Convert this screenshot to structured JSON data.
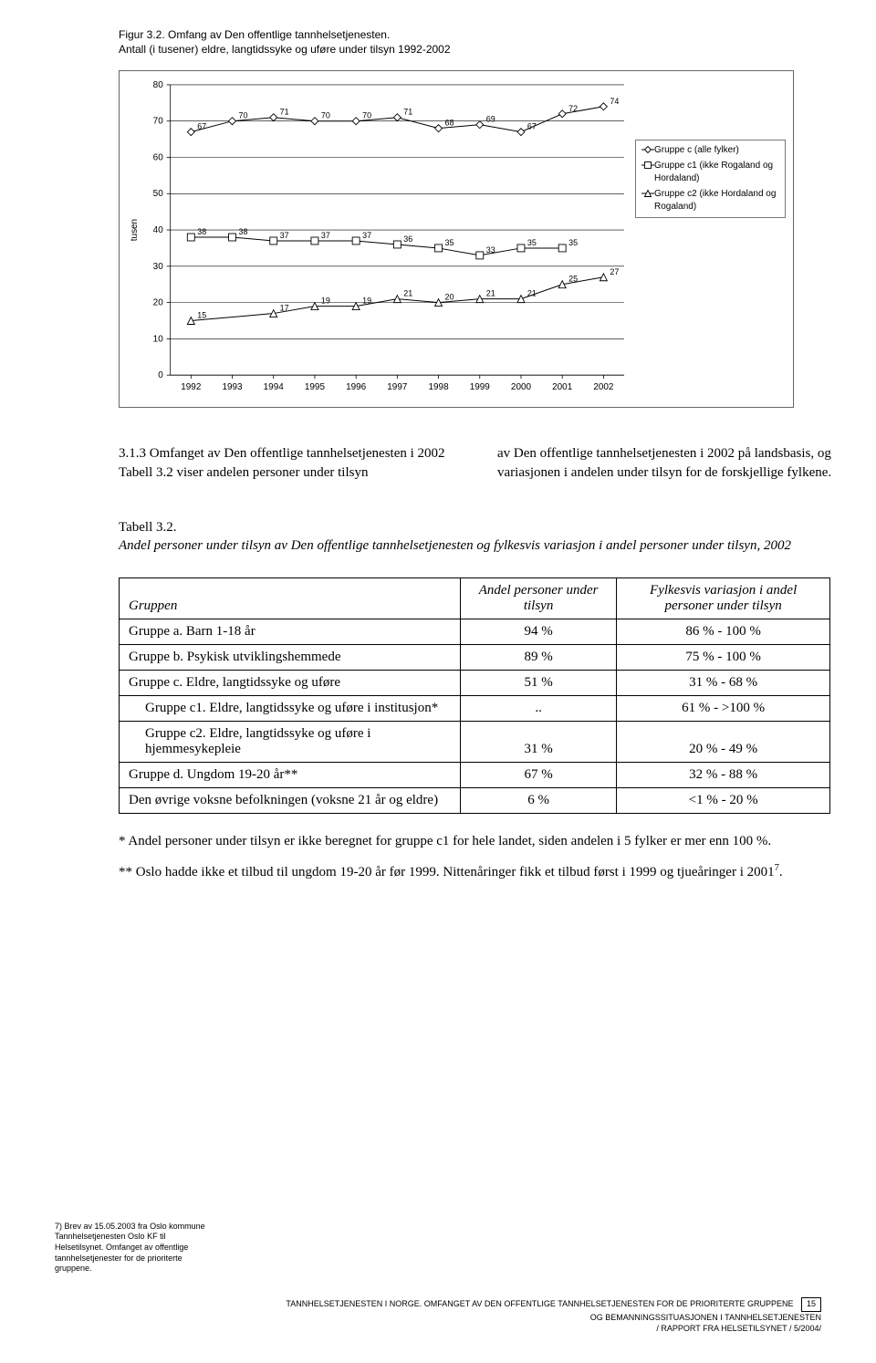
{
  "figure": {
    "title_line1": "Figur 3.2. Omfang av Den offentlige tannhelsetjenesten.",
    "title_line2": "Antall (i tusener) eldre, langtidssyke og uføre under tilsyn 1992-2002",
    "y_label": "tusen",
    "ylim": [
      0,
      80
    ],
    "ytick_step": 10,
    "x_categories": [
      "1992",
      "1993",
      "1994",
      "1995",
      "1996",
      "1997",
      "1998",
      "1999",
      "2000",
      "2001",
      "2002"
    ],
    "series": [
      {
        "name": "Gruppe c (alle fylker)",
        "marker": "diamond",
        "color": "#000000",
        "values": [
          67,
          70,
          71,
          70,
          70,
          71,
          68,
          69,
          67,
          72,
          74
        ]
      },
      {
        "name": "Gruppe c1 (ikke Rogaland og Hordaland)",
        "marker": "square",
        "color": "#000000",
        "values": [
          38,
          38,
          37,
          37,
          37,
          36,
          35,
          33,
          35,
          35,
          null
        ],
        "wraplabel": [
          "Gruppe c1 (ikke Rogaland og",
          "Hordaland)"
        ]
      },
      {
        "name": "Gruppe c2 (ikke Hordaland og Rogaland)",
        "marker": "triangle",
        "color": "#000000",
        "values": [
          15,
          null,
          17,
          19,
          19,
          21,
          20,
          21,
          21,
          25,
          27
        ],
        "wraplabel": [
          "Gruppe c2 (ikke Hordaland og",
          "Rogaland)"
        ]
      }
    ],
    "line_color": "#000000",
    "grid_color": "#000000",
    "background": "#ffffff",
    "label_fontsize": 9,
    "marker_size": 5
  },
  "section": {
    "left_heading": "3.1.3 Omfanget av Den offentlige tannhelsetjenesten i 2002",
    "left_body": "Tabell 3.2 viser andelen personer under tilsyn",
    "right_body": "av Den offentlige tannhelsetjenesten i 2002 på landsbasis, og variasjonen i andelen under tilsyn for de forskjellige fylkene."
  },
  "table": {
    "title": "Tabell 3.2.",
    "caption": "Andel personer under tilsyn av Den offentlige tannhelsetjenesten og fylkesvis variasjon i andel personer under tilsyn, 2002",
    "columns": [
      "Gruppen",
      "Andel personer under tilsyn",
      "Fylkesvis variasjon i andel personer under tilsyn"
    ],
    "rows": [
      {
        "label": "Gruppe a. Barn 1-18 år",
        "c1": "94 %",
        "c2": "86 % - 100 %"
      },
      {
        "label": "Gruppe b. Psykisk utviklingshemmede",
        "c1": "89 %",
        "c2": "75 % - 100 %"
      },
      {
        "label": "Gruppe c. Eldre, langtidssyke og uføre",
        "c1": "51 %",
        "c2": "31 % - 68 %"
      },
      {
        "label": "Gruppe c1. Eldre, langtidssyke og uføre i institusjon*",
        "c1": "..",
        "c2": "61 % - >100 %",
        "indent": true
      },
      {
        "label": "Gruppe c2. Eldre, langtidssyke og uføre i hjemmesykepleie",
        "c1": "31 %",
        "c2": "20 % - 49 %",
        "indent": true
      },
      {
        "label": "Gruppe d. Ungdom 19-20 år**",
        "c1": "67 %",
        "c2": "32 % - 88 %"
      },
      {
        "label": "Den øvrige voksne befolkningen (voksne 21 år og eldre)",
        "c1": "6 %",
        "c2": "<1 % - 20 %"
      }
    ]
  },
  "notes": {
    "n1": "* Andel personer under tilsyn er ikke beregnet for gruppe c1 for hele landet, siden andelen i 5 fylker er mer enn 100 %.",
    "n2_a": "** Oslo hadde ikke et tilbud til ungdom 19-20 år før 1999. Nittenåringer fikk et tilbud først i 1999 og tjueåringer i 2001",
    "n2_sup": "7",
    "n2_b": "."
  },
  "footnote7": "7)  Brev av 15.05.2003 fra Oslo kommune Tannhelsetjenesten Oslo KF til Helsetilsynet. Omfanget av offentlige tannhelsetjenester for de prioriterte gruppene.",
  "footer": {
    "line1": "TANNHELSETJENESTEN I NORGE. OMFANGET AV DEN OFFENTLIGE TANNHELSETJENESTEN FOR DE PRIORITERTE GRUPPENE",
    "line2": "OG BEMANNINGSSITUASJONEN I TANNHELSETJENESTEN",
    "line3": "/ RAPPORT FRA HELSETILSYNET / 5/2004/",
    "page": "15"
  }
}
